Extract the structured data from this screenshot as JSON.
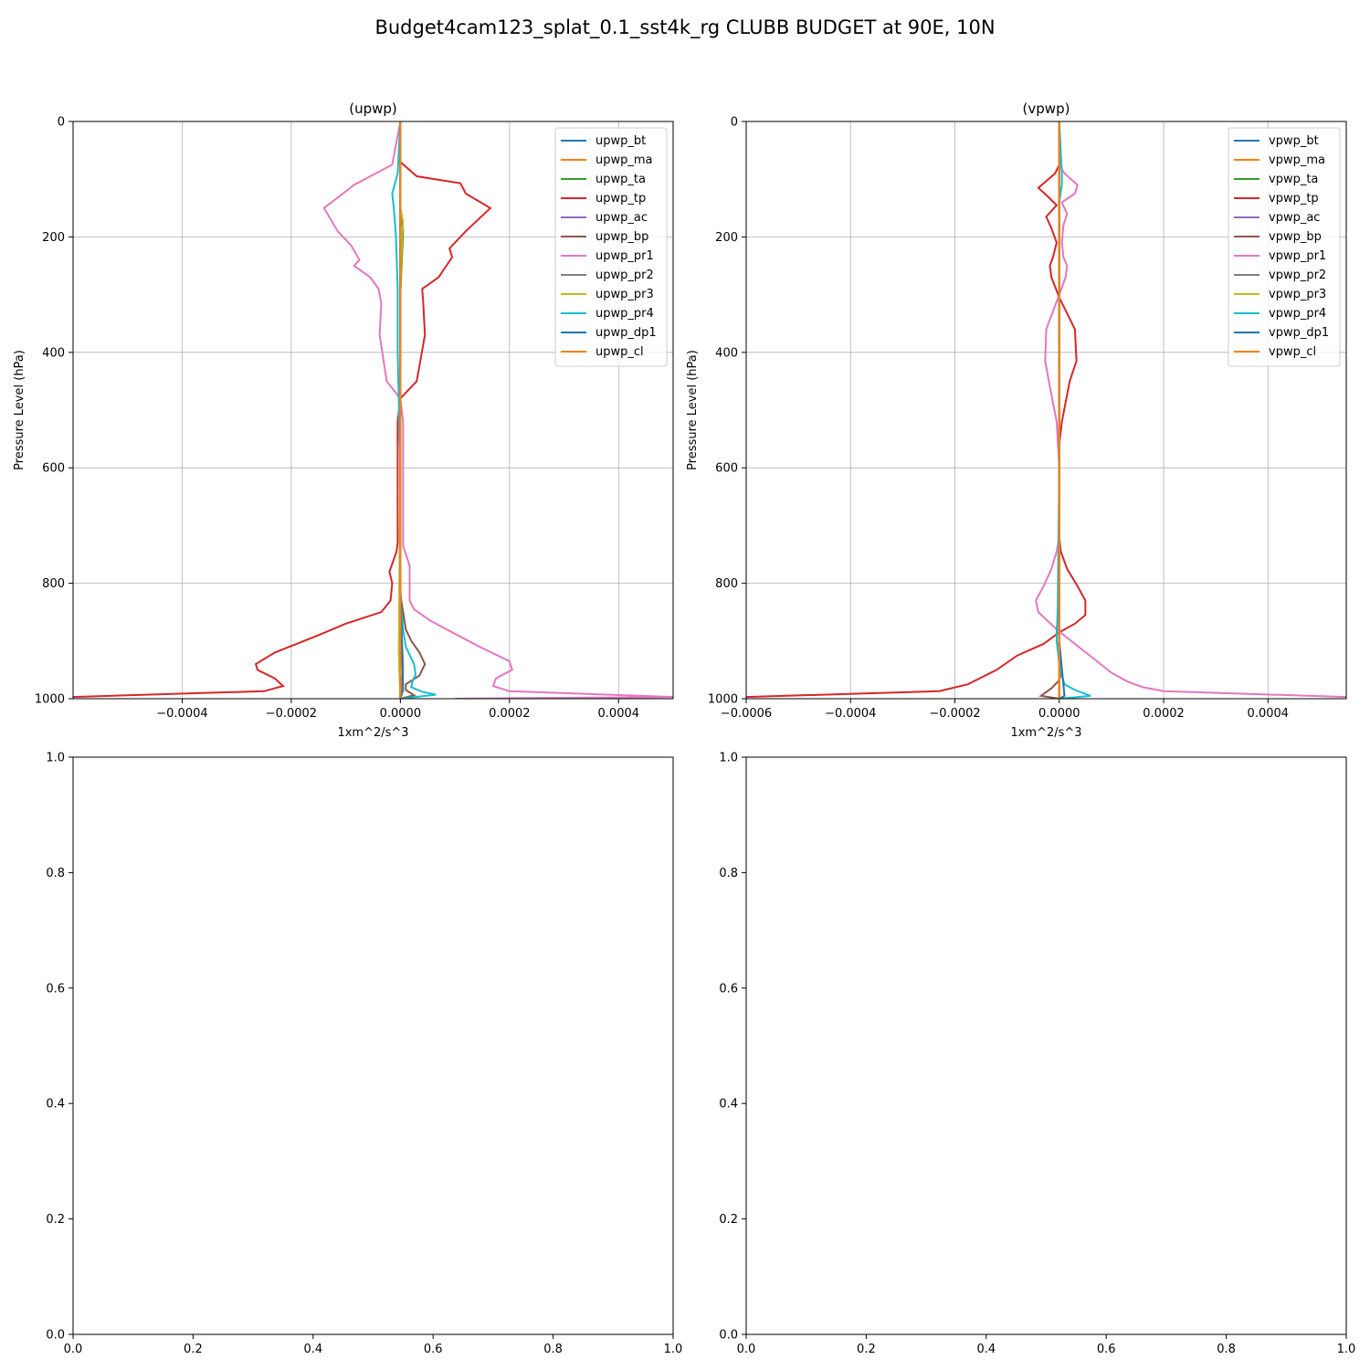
{
  "figure": {
    "suptitle": "Budget4cam123_splat_0.1_sst4k_rg CLUBB BUDGET at 90E, 10N"
  },
  "colors": [
    "#1f77b4",
    "#ff7f0e",
    "#2ca02c",
    "#d62728",
    "#9467bd",
    "#8c564b",
    "#e377c2",
    "#7f7f7f",
    "#bcbd22",
    "#17becf",
    "#1f77b4",
    "#ff7f0e"
  ],
  "chart_data": [
    {
      "type": "line",
      "title": "(upwp)",
      "xlabel": "1xm^2/s^3",
      "ylabel": "Pressure Level (hPa)",
      "xlim": [
        -0.0006,
        0.0005
      ],
      "ylim": [
        1000,
        0
      ],
      "xticks": [
        -0.0004,
        -0.0002,
        0.0,
        0.0002,
        0.0004
      ],
      "xtick_labels": [
        "−0.0004",
        "−0.0002",
        "0.0000",
        "0.0002",
        "0.0004"
      ],
      "yticks": [
        0,
        200,
        400,
        600,
        800,
        1000
      ],
      "ytick_labels": [
        "0",
        "200",
        "400",
        "600",
        "800",
        "1000"
      ],
      "grid": true,
      "legend": "upper right",
      "series": [
        {
          "name": "upwp_bt",
          "x": [
            0,
            0,
            0,
            0,
            0
          ],
          "y": [
            0,
            300,
            600,
            900,
            1000
          ]
        },
        {
          "name": "upwp_ma",
          "x": [
            0,
            0,
            0,
            0,
            0
          ],
          "y": [
            0,
            300,
            600,
            900,
            1000
          ]
        },
        {
          "name": "upwp_ta",
          "x": [
            0,
            0,
            5e-06,
            0,
            0,
            0,
            0
          ],
          "y": [
            0,
            150,
            190,
            300,
            600,
            950,
            1000
          ]
        },
        {
          "name": "upwp_tp",
          "x": [
            0.0,
            0.0,
            3e-05,
            0.00011,
            0.00012,
            0.000165,
            0.00012,
            9e-05,
            9.5e-05,
            7e-05,
            4e-05,
            4.2e-05,
            4.5e-05,
            3e-05,
            0.0,
            -5e-06,
            -5e-06,
            -5e-06,
            -7e-06,
            -2e-05,
            -1.5e-05,
            -1.8e-05,
            -3.5e-05,
            -0.0001,
            -0.00015,
            -0.00023,
            -0.000265,
            -0.000262,
            -0.00023,
            -0.000215,
            -0.00025,
            -0.0006
          ],
          "y": [
            0,
            70,
            95,
            107,
            125,
            150,
            190,
            220,
            235,
            270,
            290,
            315,
            370,
            450,
            480,
            520,
            600,
            730,
            745,
            780,
            800,
            830,
            850,
            870,
            890,
            920,
            940,
            950,
            965,
            978,
            987,
            997
          ]
        },
        {
          "name": "upwp_ac",
          "x": [
            0,
            0,
            0,
            0
          ],
          "y": [
            0,
            500,
            900,
            1000
          ]
        },
        {
          "name": "upwp_bp",
          "x": [
            0,
            0,
            0,
            1e-05,
            2e-05,
            3.5e-05,
            4.5e-05,
            3.5e-05,
            1e-05,
            1e-05,
            2.5e-05,
            0.0
          ],
          "y": [
            0,
            300,
            820,
            880,
            900,
            920,
            940,
            960,
            975,
            985,
            994,
            1000
          ]
        },
        {
          "name": "upwp_pr1",
          "x": [
            0.0,
            -1.5e-05,
            -5.5e-05,
            -8.5e-05,
            -0.00014,
            -0.000115,
            -9e-05,
            -7.5e-05,
            -8.5e-05,
            -5.5e-05,
            -4e-05,
            -3.5e-05,
            -3.8e-05,
            -2.5e-05,
            0.0,
            5e-06,
            5e-06,
            5e-06,
            5e-06,
            1.7e-05,
            1.7e-05,
            1.7e-05,
            2.5e-05,
            5.5e-05,
            9.5e-05,
            0.000145,
            0.0002,
            0.000205,
            0.000175,
            0.00017,
            0.0002,
            0.0005,
            0.0001
          ],
          "y": [
            0,
            75,
            95,
            110,
            150,
            190,
            215,
            240,
            250,
            270,
            290,
            315,
            370,
            450,
            480,
            520,
            600,
            720,
            735,
            770,
            800,
            830,
            845,
            865,
            885,
            910,
            935,
            950,
            965,
            978,
            987,
            997,
            1000
          ]
        },
        {
          "name": "upwp_pr2",
          "x": [
            0,
            0,
            0,
            5e-06,
            0
          ],
          "y": [
            0,
            300,
            820,
            950,
            1000
          ]
        },
        {
          "name": "upwp_pr3",
          "x": [
            0.0,
            0.0,
            5e-06,
            3e-06,
            0.0,
            0.0,
            -3e-06,
            -2e-06,
            0.0
          ],
          "y": [
            0,
            150,
            175,
            200,
            300,
            600,
            920,
            950,
            1000
          ]
        },
        {
          "name": "upwp_pr4",
          "x": [
            0.0,
            -5e-06,
            -1.5e-05,
            -1.2e-05,
            -8e-06,
            -5e-06,
            -5e-06,
            0.0,
            0.0,
            5e-06,
            1e-05,
            2.5e-05,
            2.8e-05,
            2.2e-05,
            2e-05,
            4e-05,
            6.5e-05,
            0.0
          ],
          "y": [
            0,
            90,
            125,
            150,
            200,
            290,
            400,
            600,
            820,
            880,
            910,
            940,
            958,
            970,
            980,
            988,
            993,
            1000
          ]
        },
        {
          "name": "upwp_dp1",
          "x": [
            0,
            0,
            0,
            5e-06,
            0
          ],
          "y": [
            0,
            400,
            800,
            985,
            1000
          ]
        },
        {
          "name": "upwp_cl",
          "x": [
            0,
            0,
            0
          ],
          "y": [
            0,
            500,
            1000
          ]
        }
      ]
    },
    {
      "type": "line",
      "title": "(vpwp)",
      "xlabel": "1xm^2/s^3",
      "ylabel": "Pressure Level (hPa)",
      "xlim": [
        -0.0006,
        0.00055
      ],
      "ylim": [
        1000,
        0
      ],
      "xticks": [
        -0.0006,
        -0.0004,
        -0.0002,
        0.0,
        0.0002,
        0.0004
      ],
      "xtick_labels": [
        "−0.0006",
        "−0.0004",
        "−0.0002",
        "0.0000",
        "0.0002",
        "0.0004"
      ],
      "yticks": [
        0,
        200,
        400,
        600,
        800,
        1000
      ],
      "ytick_labels": [
        "0",
        "200",
        "400",
        "600",
        "800",
        "1000"
      ],
      "grid": true,
      "legend": "upper right",
      "series": [
        {
          "name": "vpwp_bt",
          "x": [
            0,
            0,
            0,
            0,
            0
          ],
          "y": [
            0,
            300,
            600,
            900,
            1000
          ]
        },
        {
          "name": "vpwp_ma",
          "x": [
            0,
            0,
            0,
            0,
            0
          ],
          "y": [
            0,
            300,
            600,
            900,
            1000
          ]
        },
        {
          "name": "vpwp_ta",
          "x": [
            0,
            0,
            0,
            0
          ],
          "y": [
            0,
            300,
            700,
            1000
          ]
        },
        {
          "name": "vpwp_tp",
          "x": [
            0.0,
            0.0,
            -8e-06,
            -4e-05,
            -2.2e-05,
            -5e-06,
            -2.5e-05,
            -1.5e-05,
            -5e-06,
            -1.2e-05,
            -1.8e-05,
            -1.5e-05,
            0.0,
            3e-05,
            3.3e-05,
            2e-05,
            5e-06,
            0.0,
            0.0,
            0.0,
            3e-06,
            1.5e-05,
            3.5e-05,
            5e-05,
            5e-05,
            3e-05,
            0.0,
            -3e-05,
            -8e-05,
            -0.00012,
            -0.000175,
            -0.00023,
            -0.0006
          ],
          "y": [
            0,
            75,
            90,
            115,
            130,
            145,
            165,
            185,
            210,
            235,
            250,
            270,
            305,
            360,
            415,
            450,
            520,
            560,
            600,
            720,
            745,
            775,
            805,
            830,
            855,
            870,
            885,
            905,
            925,
            950,
            975,
            987,
            997
          ]
        },
        {
          "name": "vpwp_ac",
          "x": [
            0,
            0,
            0
          ],
          "y": [
            0,
            500,
            1000
          ]
        },
        {
          "name": "vpwp_bp",
          "x": [
            0,
            0,
            0,
            -5e-06,
            -5e-06,
            0.0,
            5e-06,
            0.0,
            -1.5e-05,
            -3.5e-05,
            0.0
          ],
          "y": [
            0,
            300,
            840,
            880,
            900,
            920,
            950,
            968,
            982,
            995,
            1000
          ]
        },
        {
          "name": "vpwp_pr1",
          "x": [
            0.0,
            0.0,
            1e-05,
            3.5e-05,
            3e-05,
            5e-06,
            1.5e-05,
            8e-06,
            5e-06,
            8e-06,
            1.5e-05,
            1.2e-05,
            0.0,
            -2.5e-05,
            -2.7e-05,
            -2e-05,
            -5e-06,
            0.0,
            0.0,
            -5e-06,
            -1.5e-05,
            -3e-05,
            -4.5e-05,
            -4e-05,
            -5e-06,
            3e-05,
            6.5e-05,
            0.0001,
            0.00013,
            0.00016,
            0.0002,
            0.00055
          ],
          "y": [
            0,
            75,
            90,
            110,
            125,
            140,
            160,
            180,
            210,
            235,
            250,
            270,
            300,
            360,
            415,
            450,
            520,
            600,
            720,
            745,
            775,
            805,
            830,
            850,
            880,
            905,
            930,
            955,
            970,
            980,
            987,
            997
          ]
        },
        {
          "name": "vpwp_pr2",
          "x": [
            0,
            0,
            0,
            0
          ],
          "y": [
            0,
            300,
            700,
            1000
          ]
        },
        {
          "name": "vpwp_pr3",
          "x": [
            0,
            0,
            0,
            0
          ],
          "y": [
            0,
            300,
            700,
            1000
          ]
        },
        {
          "name": "vpwp_pr4",
          "x": [
            0.0,
            5e-06,
            5e-06,
            0.0,
            0.0,
            0.0,
            -3e-06,
            -5e-06,
            0.0,
            5e-06,
            1e-05,
            3e-05,
            6e-05,
            0.0
          ],
          "y": [
            0,
            90,
            110,
            140,
            200,
            600,
            840,
            900,
            940,
            960,
            975,
            985,
            995,
            1000
          ]
        },
        {
          "name": "vpwp_dp1",
          "x": [
            0,
            0,
            0,
            1e-05,
            0
          ],
          "y": [
            0,
            400,
            900,
            995,
            1000
          ]
        },
        {
          "name": "vpwp_cl",
          "x": [
            0,
            0,
            0
          ],
          "y": [
            0,
            500,
            1000
          ]
        }
      ]
    },
    {
      "type": "line",
      "title": "",
      "xlim": [
        0.0,
        1.0
      ],
      "ylim": [
        0.0,
        1.0
      ],
      "xticks": [
        0.0,
        0.2,
        0.4,
        0.6,
        0.8,
        1.0
      ],
      "xtick_labels": [
        "0.0",
        "0.2",
        "0.4",
        "0.6",
        "0.8",
        "1.0"
      ],
      "yticks": [
        0.0,
        0.2,
        0.4,
        0.6,
        0.8,
        1.0
      ],
      "ytick_labels": [
        "0.0",
        "0.2",
        "0.4",
        "0.6",
        "0.8",
        "1.0"
      ],
      "grid": false,
      "series": []
    },
    {
      "type": "line",
      "title": "",
      "xlim": [
        0.0,
        1.0
      ],
      "ylim": [
        0.0,
        1.0
      ],
      "xticks": [
        0.0,
        0.2,
        0.4,
        0.6,
        0.8,
        1.0
      ],
      "xtick_labels": [
        "0.0",
        "0.2",
        "0.4",
        "0.6",
        "0.8",
        "1.0"
      ],
      "yticks": [
        0.0,
        0.2,
        0.4,
        0.6,
        0.8,
        1.0
      ],
      "ytick_labels": [
        "0.0",
        "0.2",
        "0.4",
        "0.6",
        "0.8",
        "1.0"
      ],
      "grid": false,
      "series": []
    }
  ]
}
